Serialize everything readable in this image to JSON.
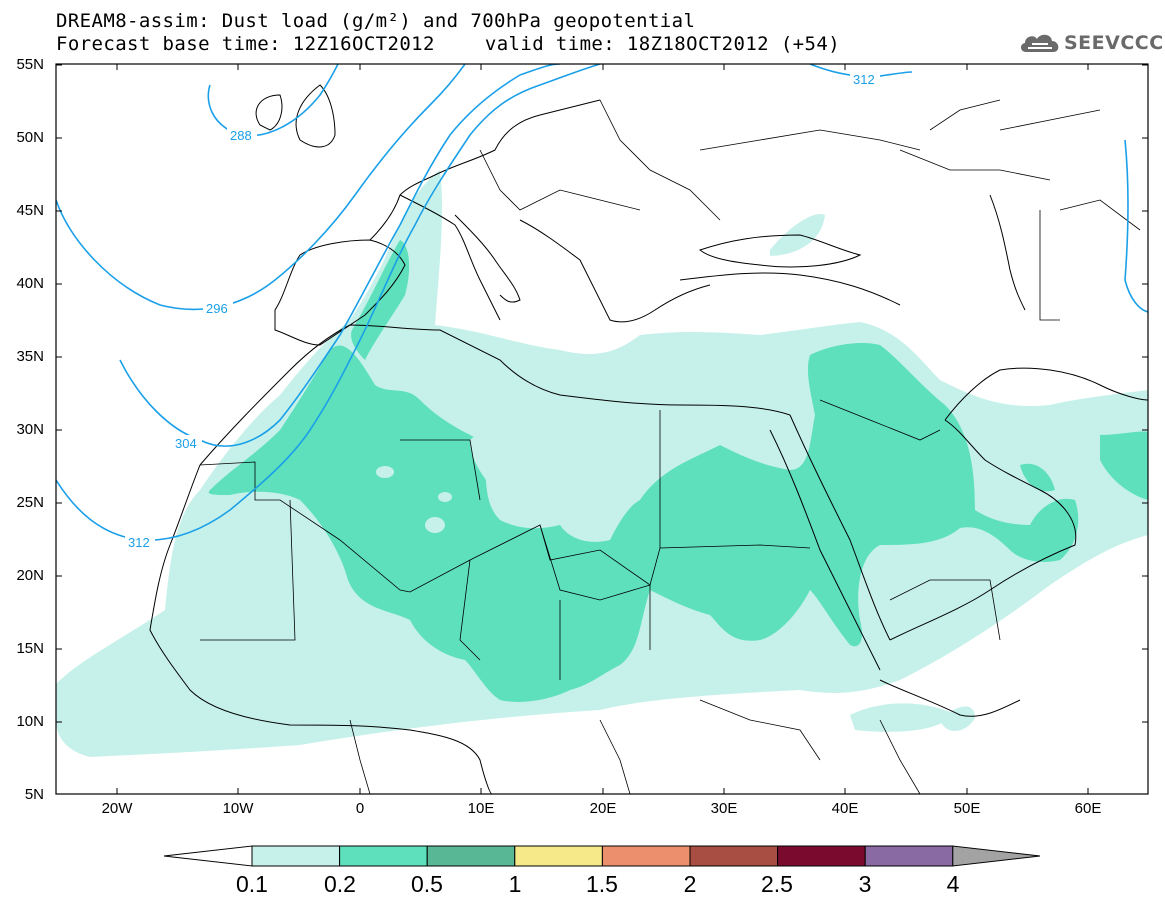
{
  "header": {
    "line1": "DREAM8-assim: Dust load (g/m²) and 700hPa geopotential",
    "base_time": "Forecast base time: 12Z16OCT2012",
    "valid_time": "valid time: 18Z18OCT2012 (+54)"
  },
  "logo": {
    "text": "SEEVCCC",
    "icon": "cloud-icon"
  },
  "latitude_labels": [
    "55N",
    "50N",
    "45N",
    "40N",
    "35N",
    "30N",
    "25N",
    "20N",
    "15N",
    "10N",
    "5N"
  ],
  "longitude_labels": [
    "20W",
    "10W",
    "0",
    "10E",
    "20E",
    "30E",
    "40E",
    "50E",
    "60E"
  ],
  "contour_labels": [
    "312",
    "288",
    "296",
    "304",
    "312"
  ],
  "colorbar": {
    "ticks": [
      "0.1",
      "0.2",
      "0.5",
      "1",
      "1.5",
      "2",
      "2.5",
      "3",
      "4"
    ],
    "colors": [
      "#ffffff",
      "#c6f1ea",
      "#5ee0bc",
      "#58b896",
      "#f5e98a",
      "#eb8f6c",
      "#a94e42",
      "#7b0b2e",
      "#8a6aa3",
      "#a3a3a3"
    ]
  },
  "map_colors": {
    "dust_low": "#c6f1ea",
    "dust_mid": "#5ee0bc",
    "contour": "#1aa0e8",
    "coast": "#000000"
  }
}
